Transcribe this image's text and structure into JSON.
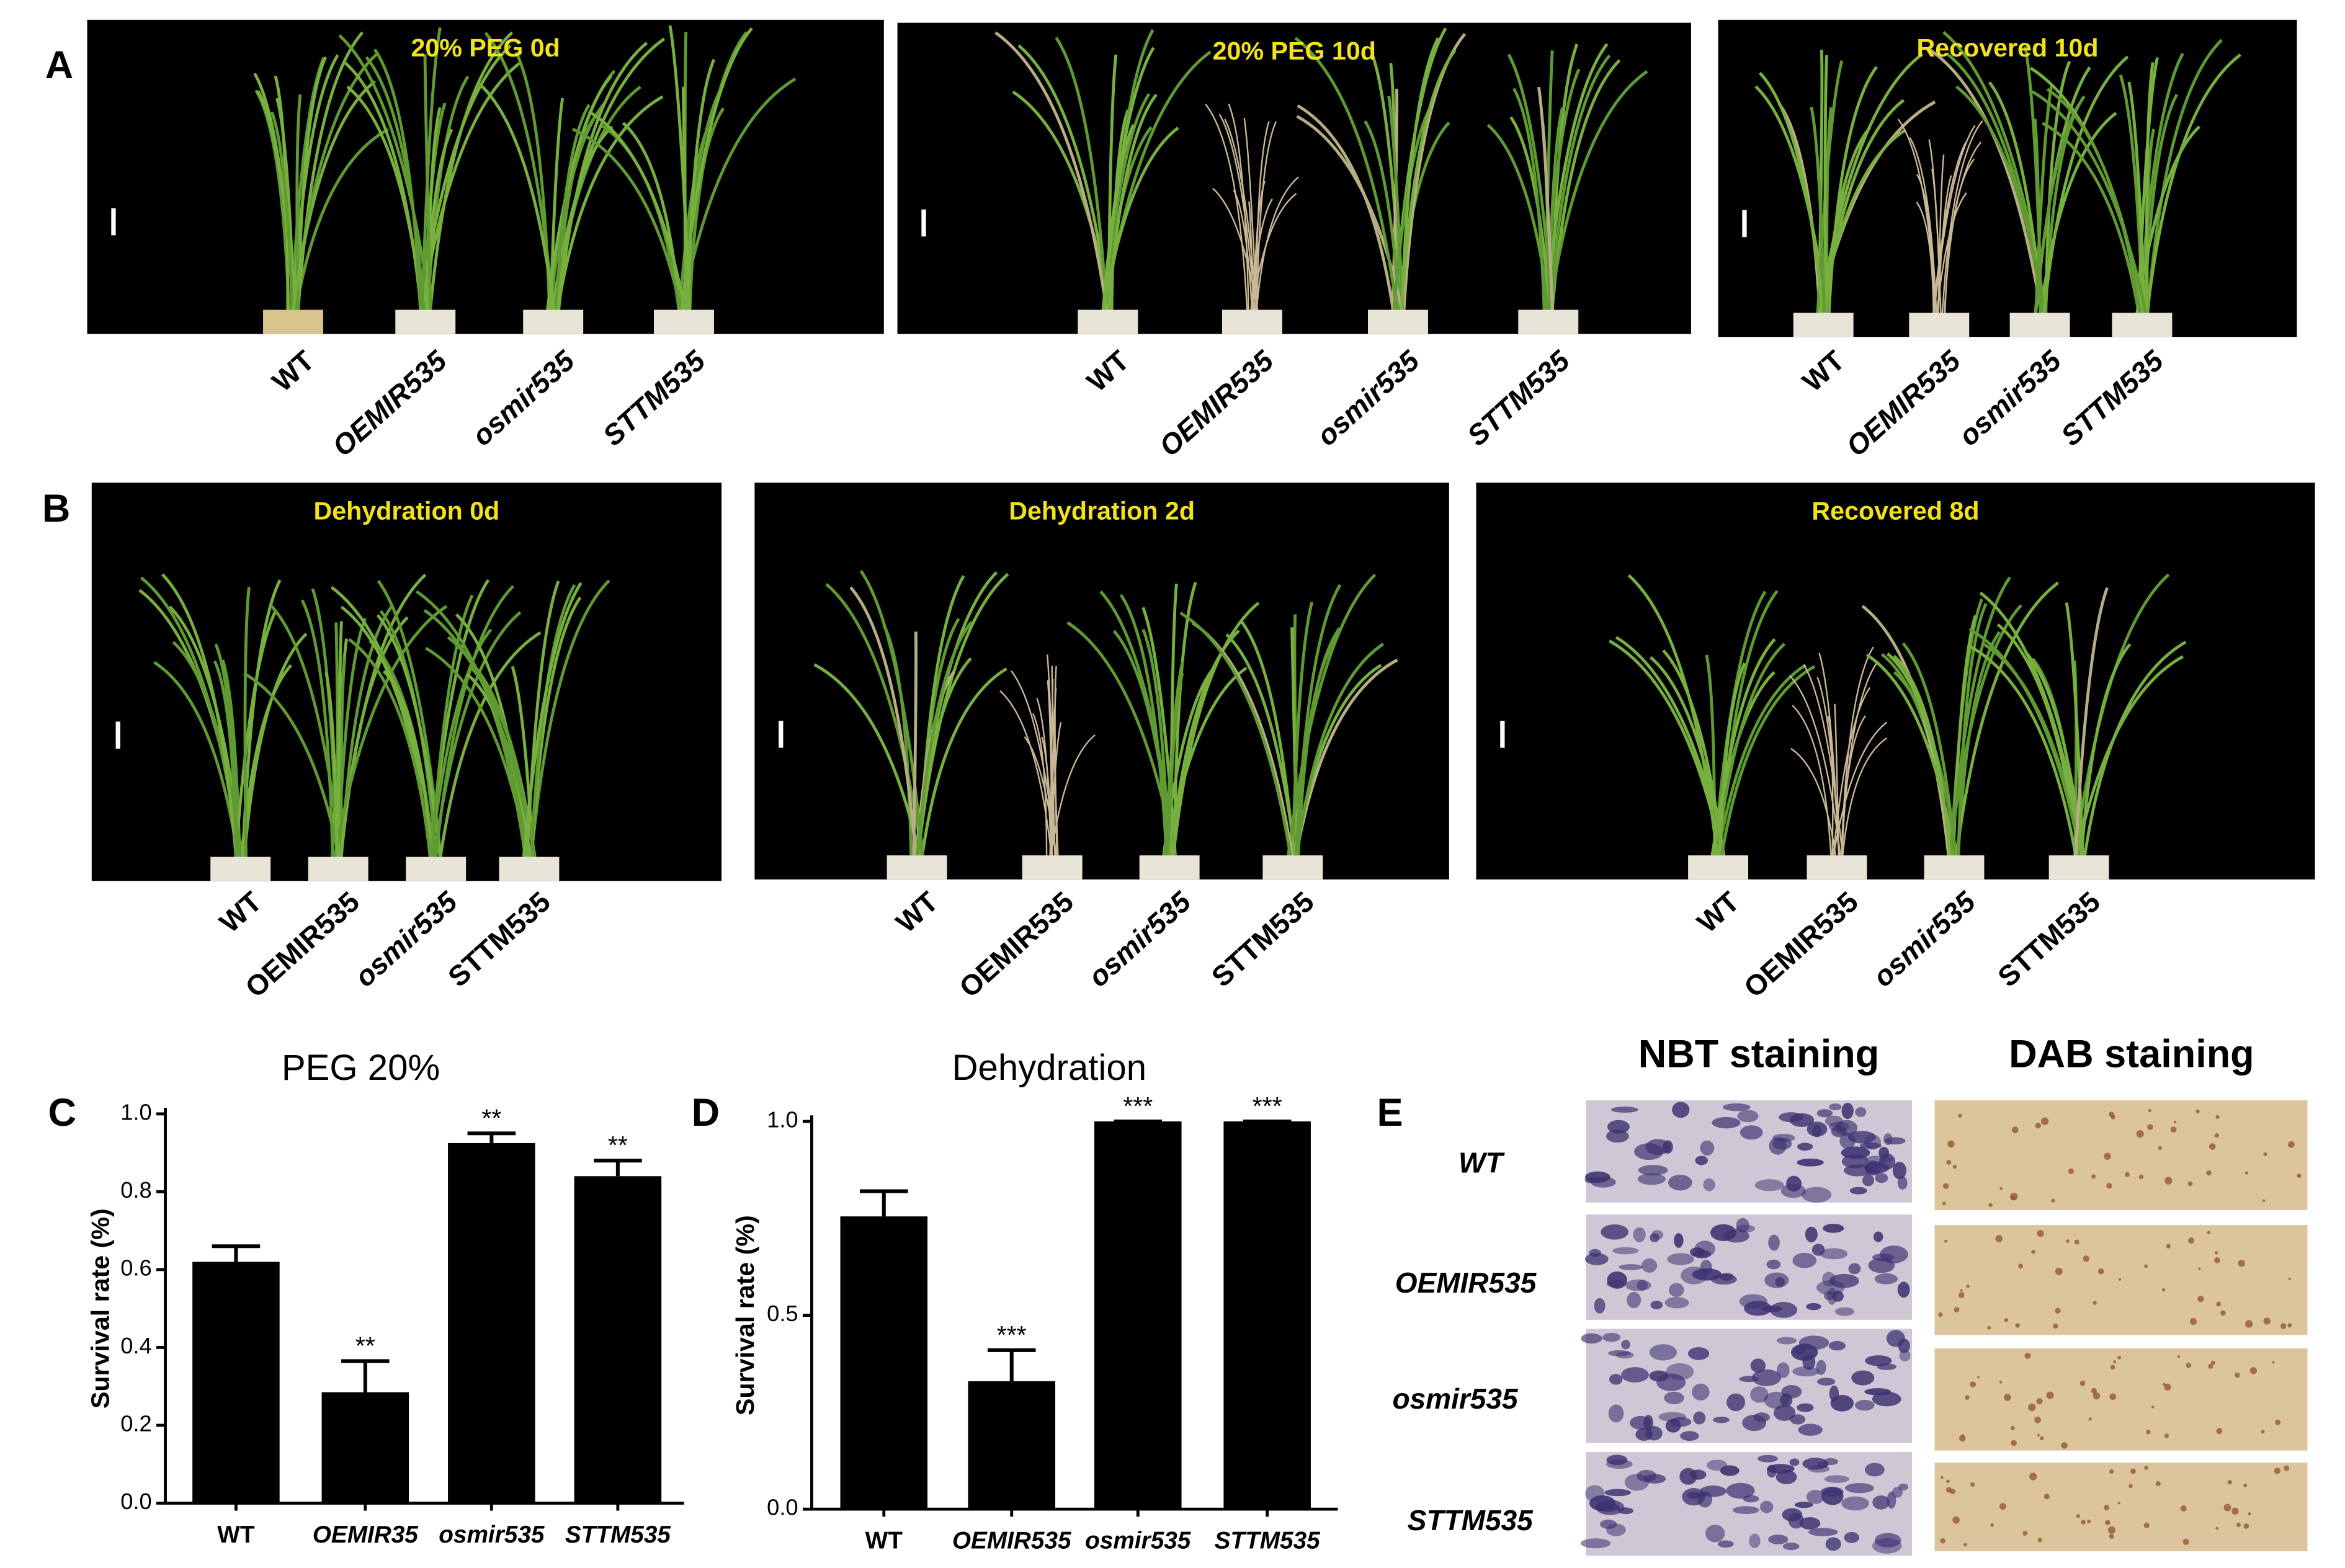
{
  "panel_labels": [
    "A",
    "B",
    "C",
    "D",
    "E"
  ],
  "panel_a": {
    "photos": [
      {
        "title": "20% PEG 0d",
        "genotypes": [
          "WT",
          "OEMIR535",
          "osmir535",
          "STTM535"
        ]
      },
      {
        "title": "20% PEG 10d",
        "genotypes": [
          "WT",
          "OEMIR535",
          "osmir535",
          "STTM535"
        ]
      },
      {
        "title": "Recovered 10d",
        "genotypes": [
          "WT",
          "OEMIR535",
          "osmir535",
          "STTM535"
        ]
      }
    ]
  },
  "panel_b": {
    "photos": [
      {
        "title": "Dehydration 0d",
        "genotypes": [
          "WT",
          "OEMIR535",
          "osmir535",
          "STTM535"
        ]
      },
      {
        "title": "Dehydration 2d",
        "genotypes": [
          "WT",
          "OEMIR535",
          "osmir535",
          "STTM535"
        ]
      },
      {
        "title": "Recovered 8d",
        "genotypes": [
          "WT",
          "OEMIR535",
          "osmir535",
          "STTM535"
        ]
      }
    ]
  },
  "chart_data": [
    {
      "type": "bar",
      "title": "PEG 20%",
      "ylabel": "Survival rate (%)",
      "categories": [
        "WT",
        "OEMIR35",
        "osmir535",
        "STTM535"
      ],
      "values": [
        0.62,
        0.285,
        0.925,
        0.84
      ],
      "errors": [
        0.04,
        0.08,
        0.025,
        0.04
      ],
      "annotations": [
        null,
        "**",
        "**",
        "**"
      ],
      "color": "#000000",
      "ylim": [
        0,
        1
      ],
      "yticks": [
        {
          "value": 0,
          "label": "0.0"
        },
        0.2,
        0.4,
        0.6,
        0.8,
        {
          "value": 1,
          "label": "1.0"
        }
      ]
    },
    {
      "type": "bar",
      "title": "Dehydration",
      "ylabel": "Survival rate (%)",
      "categories": [
        "WT",
        "OEMIR535",
        "osmir535",
        "STTM535"
      ],
      "values": [
        0.755,
        0.33,
        1,
        1
      ],
      "errors": [
        0.065,
        0.08,
        0,
        0
      ],
      "annotations": [
        null,
        "***",
        "***",
        "***"
      ],
      "color": "#000000",
      "ylim": [
        0,
        1
      ],
      "yticks": [
        {
          "value": 0,
          "label": "0.0"
        },
        0.5,
        {
          "value": 1,
          "label": "1.0"
        }
      ]
    }
  ],
  "panel_e": {
    "columns": [
      "NBT staining",
      "DAB staining"
    ],
    "rows": [
      "WT",
      "OEMIR535",
      "osmir535",
      "STTM535"
    ]
  }
}
